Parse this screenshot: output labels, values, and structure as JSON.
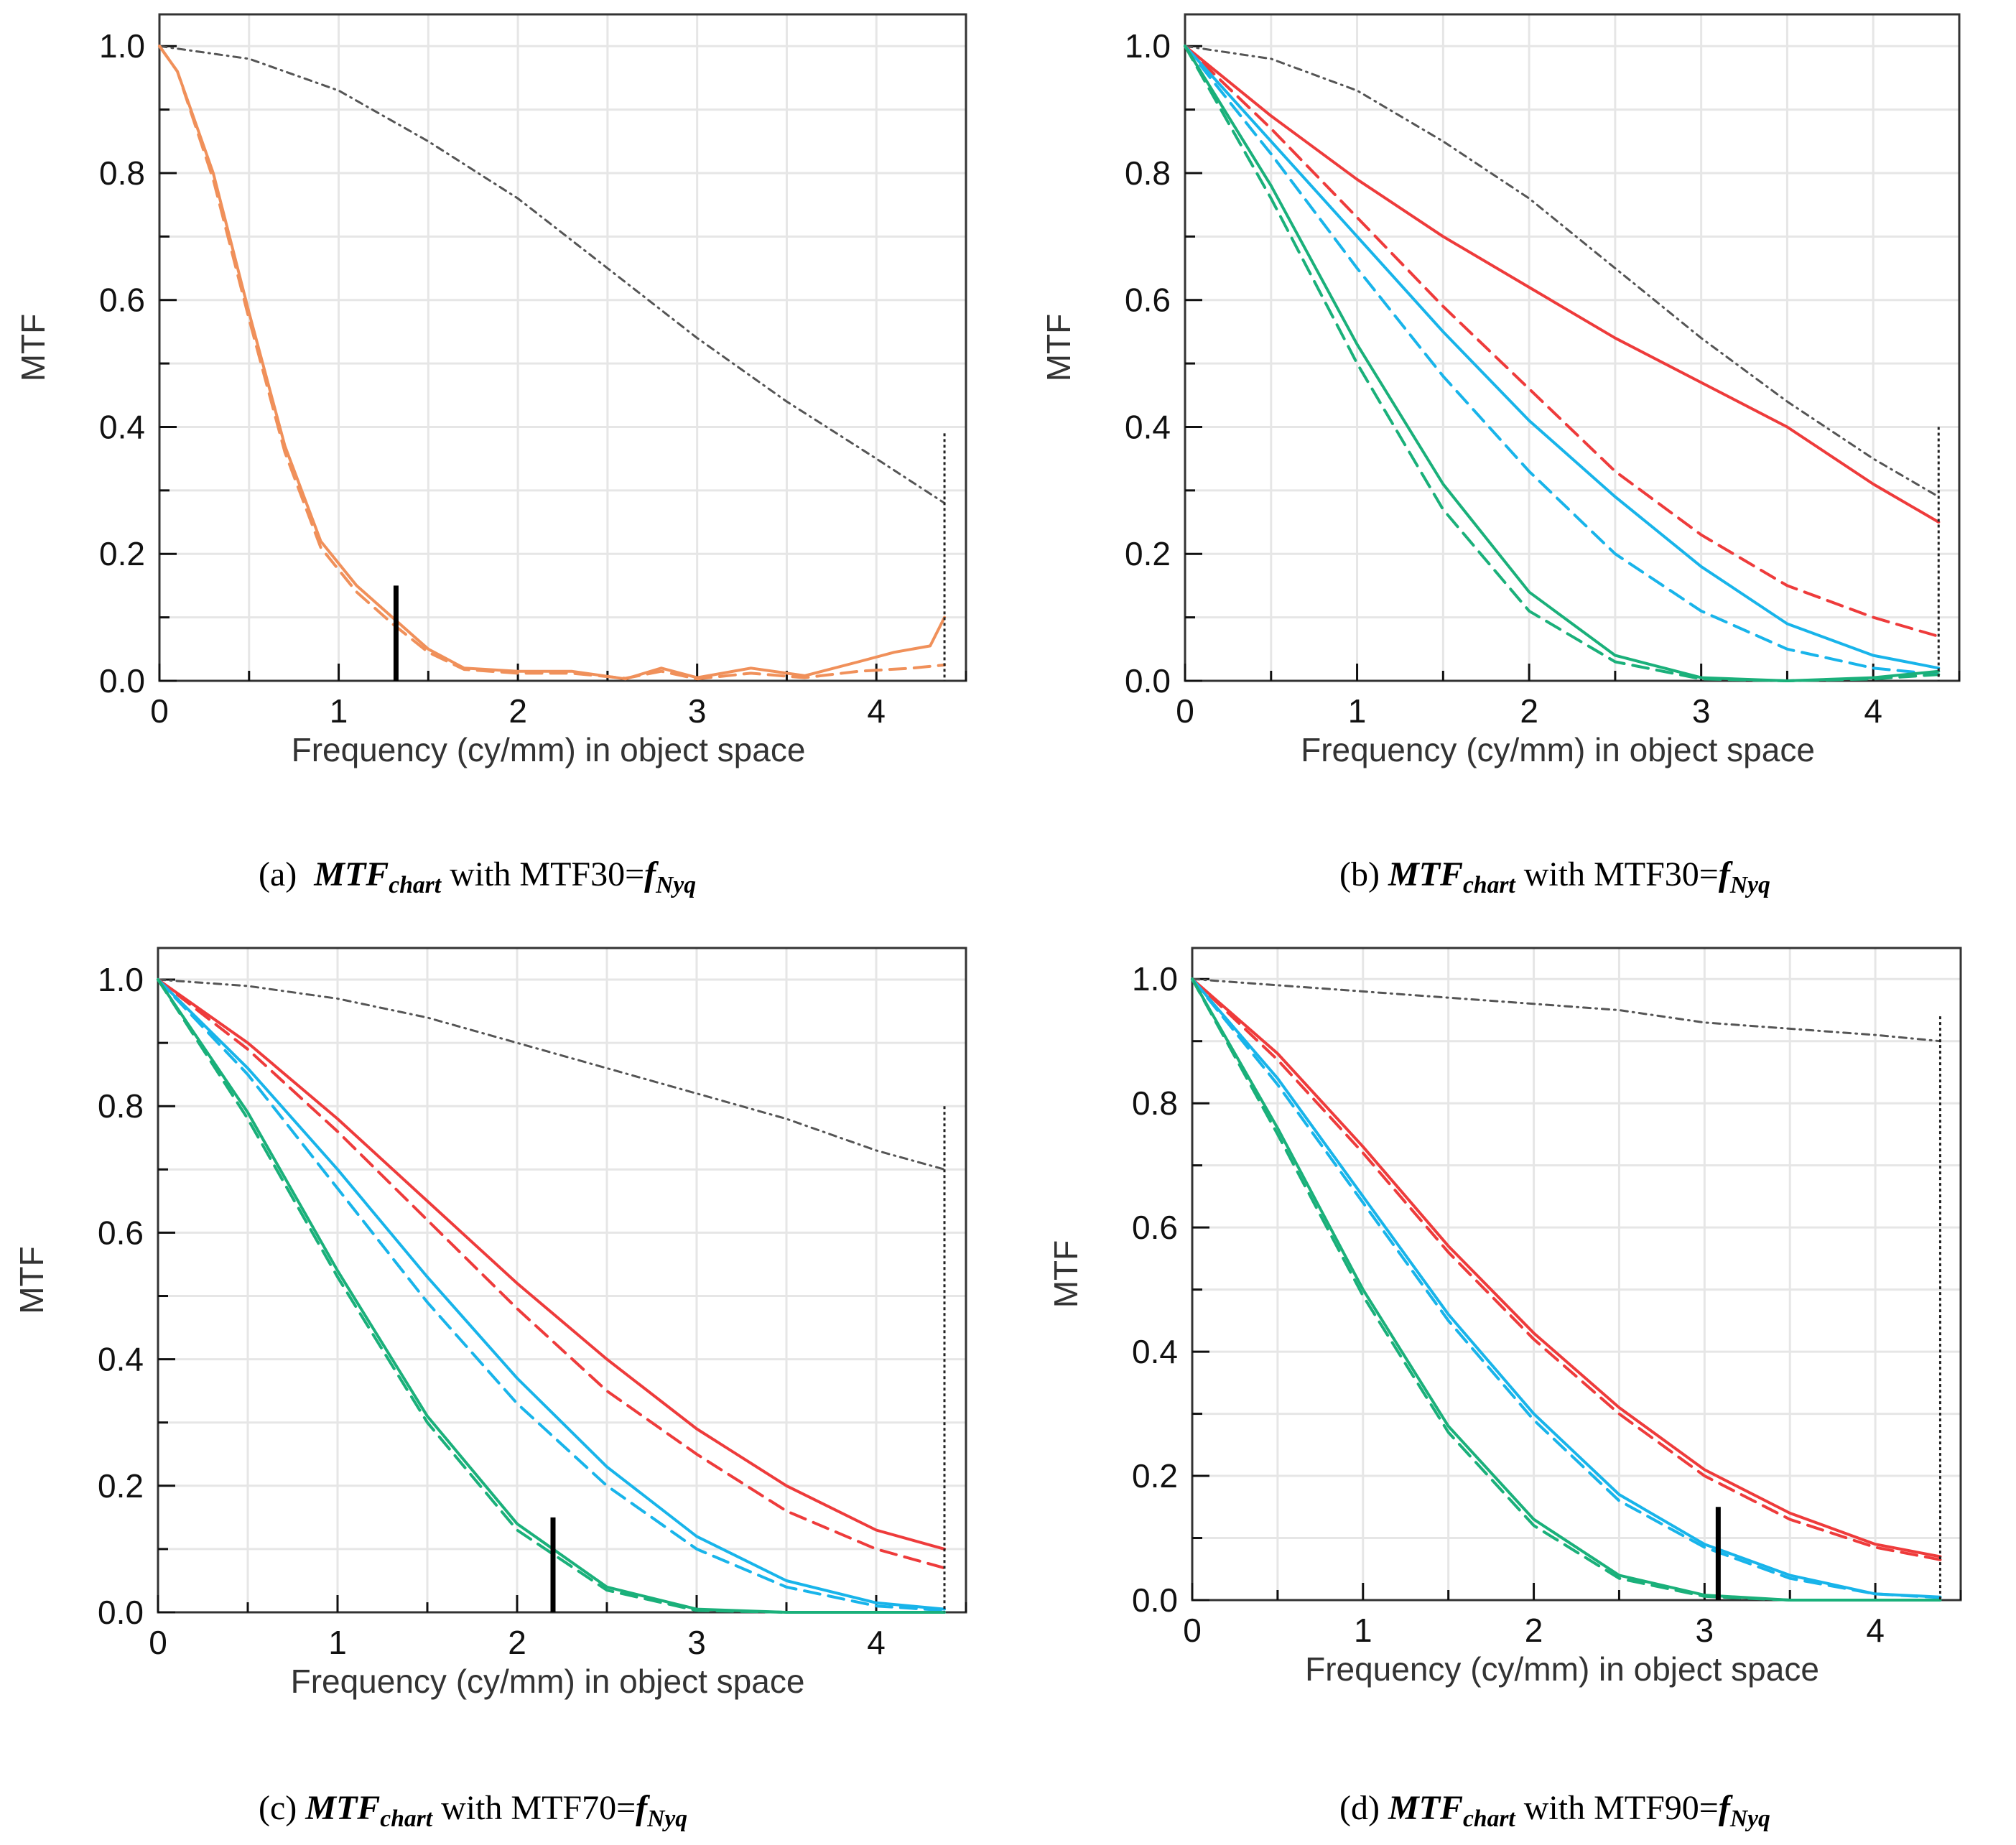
{
  "colors": {
    "upper_bound": "#555555",
    "nyquist_marker": "#222222",
    "orange": "#f0905a",
    "red": "#ee3b3b",
    "blue": "#18b4ea",
    "green": "#1ab07a",
    "mtf_marker": "#000000"
  },
  "panels": [
    {
      "caption": {
        "label": "(a)",
        "math": "MTF",
        "sub": "chart",
        "mid": " with MTF30=",
        "fmath": "f",
        "fsub": "Nyq"
      },
      "chart_data": {
        "type": "line",
        "xlabel": "Frequency (cy/mm) in object space",
        "ylabel": "MTF",
        "xlim": [
          0,
          4.5
        ],
        "ylim": [
          0,
          1.05
        ],
        "xticks": [
          "0",
          "1",
          "2",
          "3",
          "4"
        ],
        "yticks": [
          "0.0",
          "0.2",
          "0.4",
          "0.6",
          "0.8",
          "1.0"
        ],
        "grid": true,
        "nyquist": {
          "x": 4.38,
          "ymax": 0.39
        },
        "mtf_marker": {
          "x": 1.32,
          "ymax": 0.15
        },
        "series": [
          {
            "color_key": "upper_bound",
            "style": "dashdot",
            "x": [
              0,
              0.5,
              1,
              1.5,
              2,
              2.5,
              3,
              3.5,
              4,
              4.38
            ],
            "y": [
              1.0,
              0.98,
              0.93,
              0.85,
              0.76,
              0.65,
              0.54,
              0.44,
              0.35,
              0.28
            ]
          },
          {
            "color_key": "orange",
            "style": "solid",
            "x": [
              0,
              0.1,
              0.3,
              0.5,
              0.7,
              0.9,
              1.1,
              1.3,
              1.5,
              1.7,
              2.0,
              2.3,
              2.6,
              2.8,
              3.0,
              3.3,
              3.6,
              3.9,
              4.1,
              4.3,
              4.38
            ],
            "y": [
              1.0,
              0.96,
              0.8,
              0.58,
              0.37,
              0.22,
              0.15,
              0.1,
              0.05,
              0.02,
              0.015,
              0.015,
              0.003,
              0.02,
              0.005,
              0.02,
              0.008,
              0.03,
              0.045,
              0.055,
              0.1
            ]
          },
          {
            "color_key": "orange",
            "style": "dashed",
            "x": [
              0,
              0.1,
              0.3,
              0.5,
              0.7,
              0.9,
              1.1,
              1.3,
              1.5,
              1.7,
              2.0,
              2.3,
              2.6,
              2.8,
              3.0,
              3.3,
              3.6,
              3.9,
              4.2,
              4.38
            ],
            "y": [
              1.0,
              0.96,
              0.79,
              0.57,
              0.36,
              0.21,
              0.14,
              0.09,
              0.045,
              0.018,
              0.012,
              0.012,
              0.004,
              0.015,
              0.003,
              0.012,
              0.005,
              0.015,
              0.02,
              0.025
            ]
          }
        ]
      }
    },
    {
      "caption": {
        "label": "(b)",
        "math": "MTF",
        "sub": "chart",
        "mid": " with MTF30=",
        "fmath": "f",
        "fsub": "Nyq"
      },
      "chart_data": {
        "type": "line",
        "xlabel": "Frequency (cy/mm) in object space",
        "ylabel": "MTF",
        "xlim": [
          0,
          4.5
        ],
        "ylim": [
          0,
          1.05
        ],
        "xticks": [
          "0",
          "1",
          "2",
          "3",
          "4"
        ],
        "yticks": [
          "0.0",
          "0.2",
          "0.4",
          "0.6",
          "0.8",
          "1.0"
        ],
        "grid": true,
        "nyquist": {
          "x": 4.38,
          "ymax": 0.4
        },
        "series": [
          {
            "color_key": "upper_bound",
            "style": "dashdot",
            "x": [
              0,
              0.5,
              1,
              1.5,
              2,
              2.5,
              3,
              3.5,
              4,
              4.38
            ],
            "y": [
              1.0,
              0.98,
              0.93,
              0.85,
              0.76,
              0.65,
              0.54,
              0.44,
              0.35,
              0.29
            ]
          },
          {
            "color_key": "red",
            "style": "solid",
            "x": [
              0,
              0.5,
              1,
              1.5,
              2,
              2.5,
              3,
              3.5,
              4,
              4.38
            ],
            "y": [
              1.0,
              0.89,
              0.79,
              0.7,
              0.62,
              0.54,
              0.47,
              0.4,
              0.31,
              0.25
            ]
          },
          {
            "color_key": "red",
            "style": "dashed",
            "x": [
              0,
              0.5,
              1,
              1.5,
              2,
              2.5,
              3,
              3.5,
              4,
              4.38
            ],
            "y": [
              1.0,
              0.87,
              0.73,
              0.59,
              0.46,
              0.33,
              0.23,
              0.15,
              0.1,
              0.07
            ]
          },
          {
            "color_key": "blue",
            "style": "solid",
            "x": [
              0,
              0.5,
              1,
              1.5,
              2,
              2.5,
              3,
              3.5,
              4,
              4.38
            ],
            "y": [
              1.0,
              0.85,
              0.7,
              0.55,
              0.41,
              0.29,
              0.18,
              0.09,
              0.04,
              0.02
            ]
          },
          {
            "color_key": "blue",
            "style": "dashed",
            "x": [
              0,
              0.5,
              1,
              1.5,
              2,
              2.5,
              3,
              3.5,
              4,
              4.38
            ],
            "y": [
              1.0,
              0.83,
              0.65,
              0.48,
              0.33,
              0.2,
              0.11,
              0.05,
              0.02,
              0.01
            ]
          },
          {
            "color_key": "green",
            "style": "solid",
            "x": [
              0,
              0.5,
              1,
              1.5,
              2,
              2.5,
              3,
              3.5,
              4,
              4.38
            ],
            "y": [
              1.0,
              0.78,
              0.53,
              0.31,
              0.14,
              0.04,
              0.005,
              0.0,
              0.005,
              0.015
            ]
          },
          {
            "color_key": "green",
            "style": "dashed",
            "x": [
              0,
              0.5,
              1,
              1.5,
              2,
              2.5,
              3,
              3.5,
              4,
              4.38
            ],
            "y": [
              1.0,
              0.76,
              0.5,
              0.27,
              0.11,
              0.03,
              0.003,
              0.0,
              0.003,
              0.01
            ]
          }
        ]
      }
    },
    {
      "caption": {
        "label": "(c)",
        "math": "MTF",
        "sub": "chart",
        "mid": " with MTF70=",
        "fmath": "f",
        "fsub": "Nyq"
      },
      "chart_data": {
        "type": "line",
        "xlabel": "Frequency (cy/mm) in object space",
        "ylabel": "MTF",
        "xlim": [
          0,
          4.5
        ],
        "ylim": [
          0,
          1.05
        ],
        "xticks": [
          "0",
          "1",
          "2",
          "3",
          "4"
        ],
        "yticks": [
          "0.0",
          "0.2",
          "0.4",
          "0.6",
          "0.8",
          "1.0"
        ],
        "grid": true,
        "nyquist": {
          "x": 4.38,
          "ymax": 0.8
        },
        "mtf_marker": {
          "x": 2.2,
          "ymax": 0.15
        },
        "series": [
          {
            "color_key": "upper_bound",
            "style": "dashdot",
            "x": [
              0,
              0.5,
              1,
              1.5,
              2,
              2.5,
              3,
              3.5,
              4,
              4.38
            ],
            "y": [
              1.0,
              0.99,
              0.97,
              0.94,
              0.9,
              0.86,
              0.82,
              0.78,
              0.73,
              0.7
            ]
          },
          {
            "color_key": "red",
            "style": "solid",
            "x": [
              0,
              0.5,
              1,
              1.5,
              2,
              2.5,
              3,
              3.5,
              4,
              4.38
            ],
            "y": [
              1.0,
              0.9,
              0.78,
              0.65,
              0.52,
              0.4,
              0.29,
              0.2,
              0.13,
              0.1
            ]
          },
          {
            "color_key": "red",
            "style": "dashed",
            "x": [
              0,
              0.5,
              1,
              1.5,
              2,
              2.5,
              3,
              3.5,
              4,
              4.38
            ],
            "y": [
              1.0,
              0.89,
              0.76,
              0.62,
              0.48,
              0.35,
              0.25,
              0.16,
              0.1,
              0.07
            ]
          },
          {
            "color_key": "blue",
            "style": "solid",
            "x": [
              0,
              0.5,
              1,
              1.5,
              2,
              2.5,
              3,
              3.5,
              4,
              4.38
            ],
            "y": [
              1.0,
              0.86,
              0.7,
              0.53,
              0.37,
              0.23,
              0.12,
              0.05,
              0.015,
              0.005
            ]
          },
          {
            "color_key": "blue",
            "style": "dashed",
            "x": [
              0,
              0.5,
              1,
              1.5,
              2,
              2.5,
              3,
              3.5,
              4,
              4.38
            ],
            "y": [
              1.0,
              0.85,
              0.67,
              0.49,
              0.33,
              0.2,
              0.1,
              0.04,
              0.01,
              0.003
            ]
          },
          {
            "color_key": "green",
            "style": "solid",
            "x": [
              0,
              0.5,
              1,
              1.5,
              2,
              2.5,
              3,
              3.5,
              4,
              4.38
            ],
            "y": [
              1.0,
              0.79,
              0.54,
              0.31,
              0.14,
              0.04,
              0.005,
              0.0,
              0.0,
              0.0
            ]
          },
          {
            "color_key": "green",
            "style": "dashed",
            "x": [
              0,
              0.5,
              1,
              1.5,
              2,
              2.5,
              3,
              3.5,
              4,
              4.38
            ],
            "y": [
              1.0,
              0.78,
              0.53,
              0.3,
              0.13,
              0.035,
              0.003,
              0.0,
              0.0,
              0.0
            ]
          }
        ]
      }
    },
    {
      "caption": {
        "label": "(d)",
        "math": "MTF",
        "sub": "chart",
        "mid": " with MTF90=",
        "fmath": "f",
        "fsub": "Nyq"
      },
      "chart_data": {
        "type": "line",
        "xlabel": "Frequency (cy/mm) in object space",
        "ylabel": "MTF",
        "xlim": [
          0,
          4.5
        ],
        "ylim": [
          0,
          1.05
        ],
        "xticks": [
          "0",
          "1",
          "2",
          "3",
          "4"
        ],
        "yticks": [
          "0.0",
          "0.2",
          "0.4",
          "0.6",
          "0.8",
          "1.0"
        ],
        "grid": true,
        "nyquist": {
          "x": 4.38,
          "ymax": 0.94
        },
        "mtf_marker": {
          "x": 3.08,
          "ymax": 0.15
        },
        "series": [
          {
            "color_key": "upper_bound",
            "style": "dashdot",
            "x": [
              0,
              0.5,
              1,
              1.5,
              2,
              2.5,
              3,
              3.5,
              4,
              4.38
            ],
            "y": [
              1.0,
              0.99,
              0.98,
              0.97,
              0.96,
              0.95,
              0.93,
              0.92,
              0.91,
              0.9
            ]
          },
          {
            "color_key": "red",
            "style": "solid",
            "x": [
              0,
              0.5,
              1,
              1.5,
              2,
              2.5,
              3,
              3.5,
              4,
              4.38
            ],
            "y": [
              1.0,
              0.88,
              0.73,
              0.57,
              0.43,
              0.31,
              0.21,
              0.14,
              0.09,
              0.07
            ]
          },
          {
            "color_key": "red",
            "style": "dashed",
            "x": [
              0,
              0.5,
              1,
              1.5,
              2,
              2.5,
              3,
              3.5,
              4,
              4.38
            ],
            "y": [
              1.0,
              0.87,
              0.72,
              0.56,
              0.42,
              0.3,
              0.2,
              0.13,
              0.085,
              0.065
            ]
          },
          {
            "color_key": "blue",
            "style": "solid",
            "x": [
              0,
              0.5,
              1,
              1.5,
              2,
              2.5,
              3,
              3.5,
              4,
              4.38
            ],
            "y": [
              1.0,
              0.84,
              0.65,
              0.46,
              0.3,
              0.17,
              0.09,
              0.04,
              0.01,
              0.005
            ]
          },
          {
            "color_key": "blue",
            "style": "dashed",
            "x": [
              0,
              0.5,
              1,
              1.5,
              2,
              2.5,
              3,
              3.5,
              4,
              4.38
            ],
            "y": [
              1.0,
              0.83,
              0.64,
              0.45,
              0.29,
              0.16,
              0.085,
              0.035,
              0.01,
              0.004
            ]
          },
          {
            "color_key": "green",
            "style": "solid",
            "x": [
              0,
              0.5,
              1,
              1.5,
              2,
              2.5,
              3,
              3.5,
              4,
              4.38
            ],
            "y": [
              1.0,
              0.76,
              0.5,
              0.28,
              0.13,
              0.04,
              0.008,
              0.0,
              0.0,
              0.0
            ]
          },
          {
            "color_key": "green",
            "style": "dashed",
            "x": [
              0,
              0.5,
              1,
              1.5,
              2,
              2.5,
              3,
              3.5,
              4,
              4.38
            ],
            "y": [
              1.0,
              0.75,
              0.49,
              0.27,
              0.12,
              0.035,
              0.006,
              0.0,
              0.0,
              0.0
            ]
          }
        ]
      }
    }
  ]
}
